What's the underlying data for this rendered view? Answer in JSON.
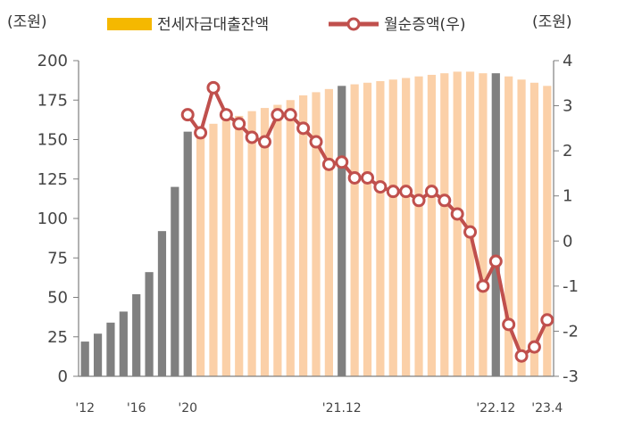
{
  "chart_data": {
    "type": "bar+line",
    "left_unit": "(조원)",
    "right_unit": "(조원)",
    "legend": [
      {
        "label": "전세자금대출잔액",
        "kind": "bar",
        "color": "#f5b800"
      },
      {
        "label": "월순증액(우)",
        "kind": "line",
        "color": "#c0504d"
      }
    ],
    "left_axis": {
      "min": 0,
      "max": 200,
      "ticks": [
        "0",
        "25",
        "50",
        "75",
        "100",
        "125",
        "150",
        "175",
        "200"
      ]
    },
    "right_axis": {
      "min": -3,
      "max": 4,
      "ticks": [
        "-3",
        "-2",
        "-1",
        "0",
        "1",
        "2",
        "3",
        "4"
      ]
    },
    "x_tick_labels": [
      {
        "label": "'12",
        "index": 0
      },
      {
        "label": "'16",
        "index": 4
      },
      {
        "label": "'20",
        "index": 8
      },
      {
        "label": "'21.12",
        "index": 20
      },
      {
        "label": "'22.12",
        "index": 32
      },
      {
        "label": "'23.4",
        "index": 36
      }
    ],
    "bars": [
      {
        "value": 22,
        "kind": "annual"
      },
      {
        "value": 27,
        "kind": "annual"
      },
      {
        "value": 34,
        "kind": "annual"
      },
      {
        "value": 41,
        "kind": "annual"
      },
      {
        "value": 52,
        "kind": "annual"
      },
      {
        "value": 66,
        "kind": "annual"
      },
      {
        "value": 92,
        "kind": "annual"
      },
      {
        "value": 120,
        "kind": "annual"
      },
      {
        "value": 155,
        "kind": "annual"
      },
      {
        "value": 158,
        "kind": "monthly"
      },
      {
        "value": 160,
        "kind": "monthly"
      },
      {
        "value": 162,
        "kind": "monthly"
      },
      {
        "value": 165,
        "kind": "monthly"
      },
      {
        "value": 168,
        "kind": "monthly"
      },
      {
        "value": 170,
        "kind": "monthly"
      },
      {
        "value": 172,
        "kind": "monthly"
      },
      {
        "value": 175,
        "kind": "monthly"
      },
      {
        "value": 178,
        "kind": "monthly"
      },
      {
        "value": 180,
        "kind": "monthly"
      },
      {
        "value": 182,
        "kind": "monthly"
      },
      {
        "value": 184,
        "kind": "annual"
      },
      {
        "value": 185,
        "kind": "monthly"
      },
      {
        "value": 186,
        "kind": "monthly"
      },
      {
        "value": 187,
        "kind": "monthly"
      },
      {
        "value": 188,
        "kind": "monthly"
      },
      {
        "value": 189,
        "kind": "monthly"
      },
      {
        "value": 190,
        "kind": "monthly"
      },
      {
        "value": 191,
        "kind": "monthly"
      },
      {
        "value": 192,
        "kind": "monthly"
      },
      {
        "value": 193,
        "kind": "monthly"
      },
      {
        "value": 193,
        "kind": "monthly"
      },
      {
        "value": 192,
        "kind": "monthly"
      },
      {
        "value": 192,
        "kind": "annual"
      },
      {
        "value": 190,
        "kind": "monthly"
      },
      {
        "value": 188,
        "kind": "monthly"
      },
      {
        "value": 186,
        "kind": "monthly"
      },
      {
        "value": 184,
        "kind": "monthly"
      }
    ],
    "line": [
      {
        "index": 8,
        "value": 2.8
      },
      {
        "index": 9,
        "value": 2.4
      },
      {
        "index": 10,
        "value": 3.4
      },
      {
        "index": 11,
        "value": 2.8
      },
      {
        "index": 12,
        "value": 2.6
      },
      {
        "index": 13,
        "value": 2.3
      },
      {
        "index": 14,
        "value": 2.2
      },
      {
        "index": 15,
        "value": 2.8
      },
      {
        "index": 16,
        "value": 2.8
      },
      {
        "index": 17,
        "value": 2.5
      },
      {
        "index": 18,
        "value": 2.2
      },
      {
        "index": 19,
        "value": 1.7
      },
      {
        "index": 20,
        "value": 1.75
      },
      {
        "index": 21,
        "value": 1.4
      },
      {
        "index": 22,
        "value": 1.4
      },
      {
        "index": 23,
        "value": 1.2
      },
      {
        "index": 24,
        "value": 1.1
      },
      {
        "index": 25,
        "value": 1.1
      },
      {
        "index": 26,
        "value": 0.9
      },
      {
        "index": 27,
        "value": 1.1
      },
      {
        "index": 28,
        "value": 0.9
      },
      {
        "index": 29,
        "value": 0.6
      },
      {
        "index": 30,
        "value": 0.2
      },
      {
        "index": 31,
        "value": -1.0
      },
      {
        "index": 32,
        "value": -0.45
      },
      {
        "index": 33,
        "value": -1.85
      },
      {
        "index": 34,
        "value": -2.55
      },
      {
        "index": 35,
        "value": -2.35
      },
      {
        "index": 36,
        "value": -1.75
      }
    ],
    "colors": {
      "annual_bar": "#808080",
      "monthly_bar": "#fbd0a8",
      "line": "#c0504d",
      "marker_fill": "#ffffff",
      "axis": "#7f7f7f"
    }
  }
}
